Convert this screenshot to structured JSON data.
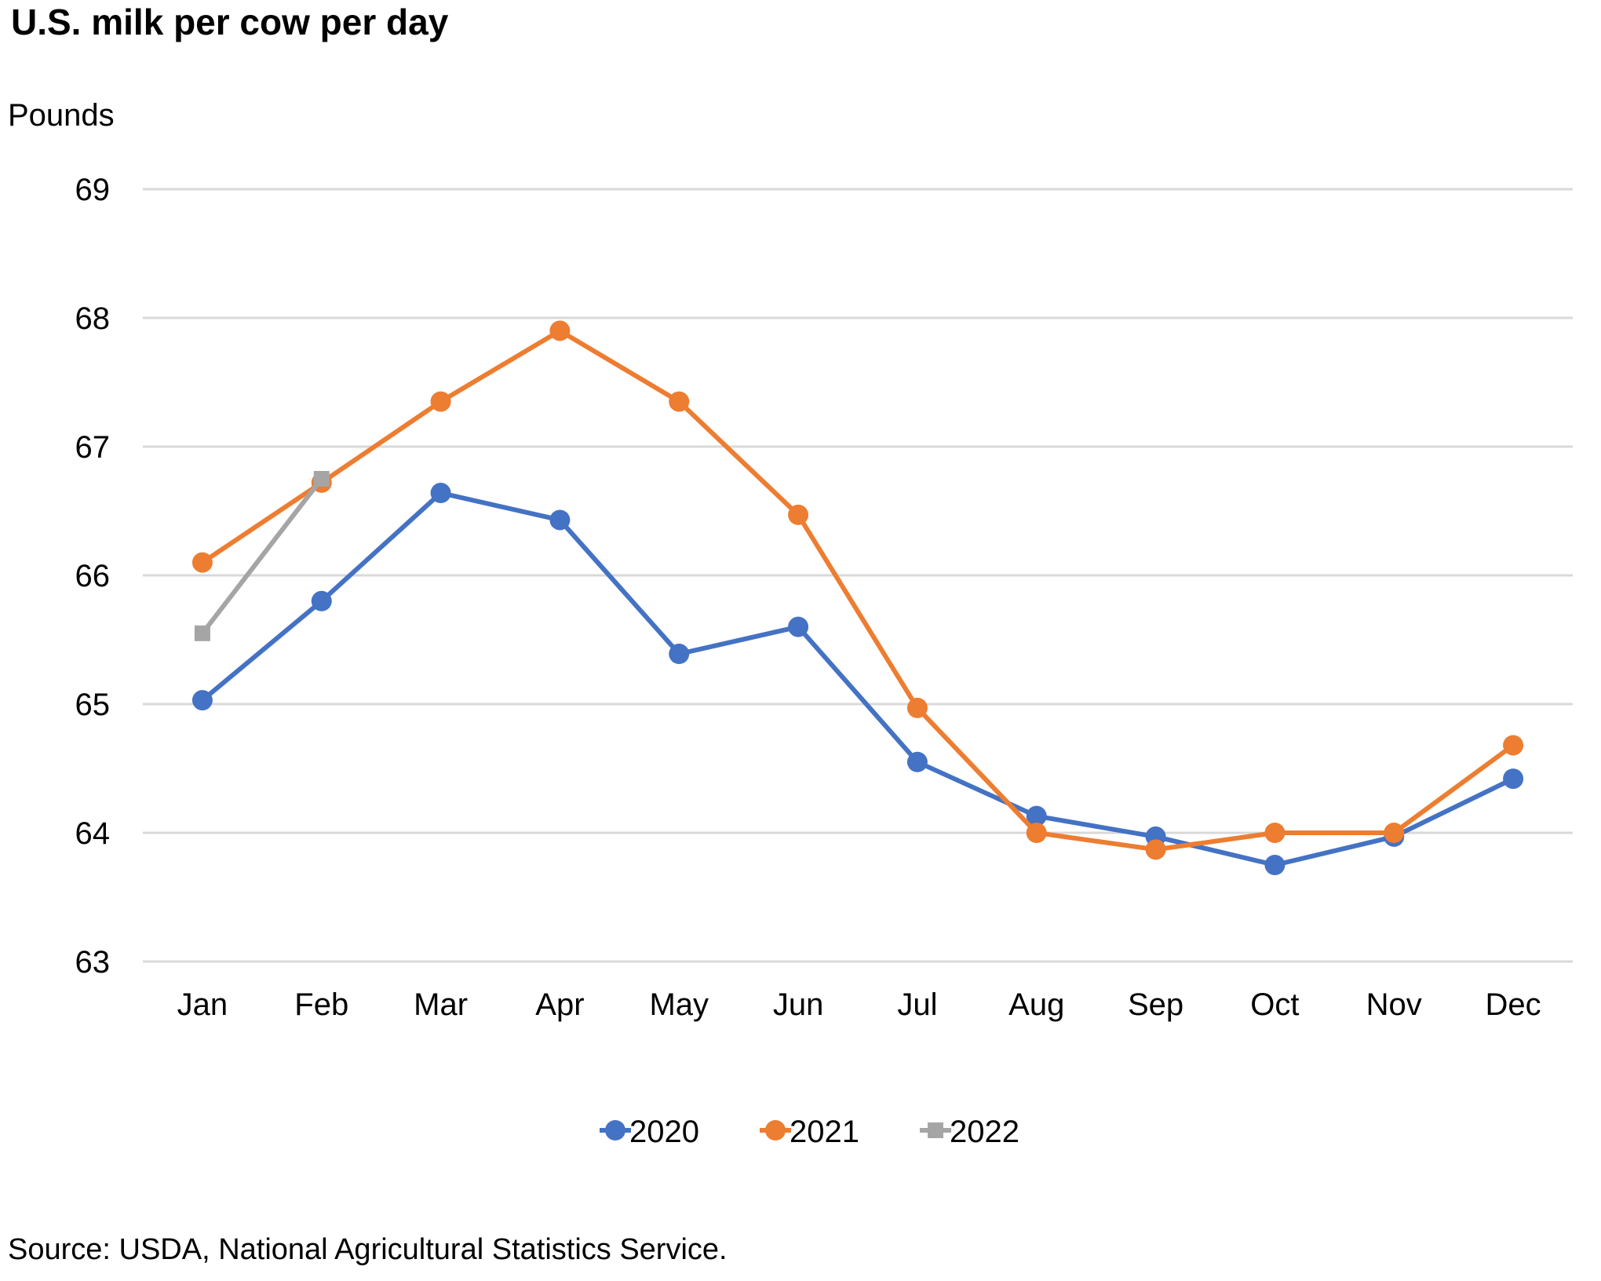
{
  "chart_data": {
    "type": "line",
    "title": "U.S. milk per cow per day",
    "ylabel": "Pounds",
    "xlabel": "",
    "ylim": [
      63,
      69
    ],
    "yticks": [
      "63",
      "64",
      "65",
      "66",
      "67",
      "68",
      "69"
    ],
    "categories": [
      "Jan",
      "Feb",
      "Mar",
      "Apr",
      "May",
      "Jun",
      "Jul",
      "Aug",
      "Sep",
      "Oct",
      "Nov",
      "Dec"
    ],
    "series": [
      {
        "name": "2020",
        "color": "#4472c4",
        "marker": "circle",
        "values": [
          65.03,
          65.8,
          66.64,
          66.43,
          65.39,
          65.6,
          64.55,
          64.13,
          63.97,
          63.75,
          63.97,
          64.42
        ]
      },
      {
        "name": "2021",
        "color": "#ed7d31",
        "marker": "circle",
        "values": [
          66.1,
          66.72,
          67.35,
          67.9,
          67.35,
          66.47,
          64.97,
          64.0,
          63.87,
          64.0,
          64.0,
          64.68
        ]
      },
      {
        "name": "2022",
        "color": "#a5a5a5",
        "marker": "square",
        "values": [
          65.55,
          66.75,
          null,
          null,
          null,
          null,
          null,
          null,
          null,
          null,
          null,
          null
        ]
      }
    ],
    "grid": true,
    "legend_position": "bottom",
    "source": "Source: USDA, National Agricultural Statistics Service."
  }
}
